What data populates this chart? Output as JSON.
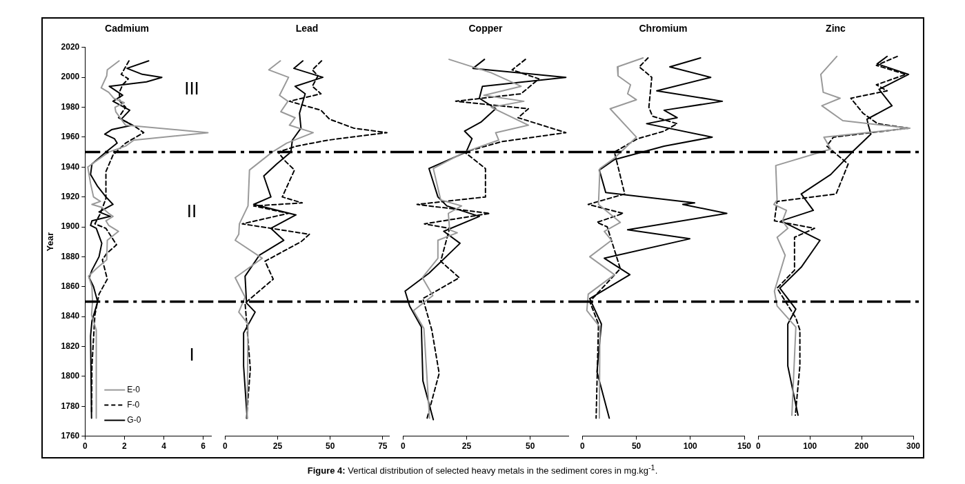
{
  "chart_data": [
    {
      "type": "line",
      "title": "Cadmium",
      "ylabel": "Year",
      "xlim": [
        0,
        6.4
      ],
      "xticks": [
        0,
        2,
        4,
        6
      ],
      "ylim": [
        1760,
        2020
      ],
      "yticks": [
        1760,
        1780,
        1800,
        1820,
        1840,
        1860,
        1880,
        1900,
        1920,
        1940,
        1960,
        1980,
        2000,
        2020
      ],
      "legend": "bottom left",
      "ref_lines": [
        {
          "axis": "y",
          "value": 1950,
          "color": "#000000",
          "line_style": "dashed"
        },
        {
          "axis": "y",
          "value": 1850,
          "color": "#000000",
          "line_style": "dashed"
        }
      ],
      "annotations": [
        "III",
        "II",
        "I",
        "Figure 4: Vertical distribution of selected heavy metals in the sediment cores in mg.kg$^{-1}$."
      ],
      "series": [
        {
          "name": "E-0",
          "color": "#999999",
          "x": [
            1.73,
            1.13,
            1.1,
            0.82,
            1.2,
            1.46,
            1.99,
            1.52,
            1.56,
            2.06,
            6.24,
            2.48,
            2.06,
            1.2,
            0.14,
            0.28,
            0.43,
            0.78,
            0.35,
            0.85,
            1.2,
            1.42,
            1.06,
            1.2,
            1.7,
            1.13,
            1.1,
            0.57,
            0.18,
            0.35,
            0.38,
            0.33,
            0.57,
            0.57
          ],
          "values": [
            2011,
            2005,
            2001,
            1993,
            1990,
            1986,
            1983,
            1980,
            1977,
            1968,
            1963,
            1958,
            1954,
            1950,
            1940,
            1929,
            1920,
            1917,
            1915,
            1913,
            1909,
            1907,
            1904,
            1901,
            1897,
            1891,
            1878,
            1872,
            1867,
            1860,
            1850,
            1841,
            1831,
            1772
          ]
        },
        {
          "name": "F-0",
          "color": "#000000",
          "line_style": "dashed",
          "x": [
            2.23,
            1.84,
            2.2,
            1.91,
            1.74,
            1.77,
            2.06,
            1.7,
            2.55,
            2.98,
            2.06,
            1.42,
            1.06,
            1.06,
            0.78,
            0.5,
            1.06,
            1.6,
            1.09,
            0.88,
            1.13,
            0.71,
            0.5,
            0.35,
            0.33
          ],
          "values": [
            2011,
            2002,
            1999,
            1995,
            1990,
            1984,
            1980,
            1973,
            1967,
            1963,
            1956,
            1948,
            1937,
            1919,
            1909,
            1902,
            1899,
            1888,
            1882,
            1878,
            1865,
            1855,
            1841,
            1807,
            1775
          ]
        },
        {
          "name": "G-0",
          "color": "#000000",
          "x": [
            3.23,
            2.13,
            2.91,
            3.9,
            3.12,
            1.23,
            1.91,
            1.42,
            2.27,
            1.84,
            2.41,
            1.35,
            1.0,
            1.49,
            1.63,
            1.06,
            0.35,
            0.28,
            0.64,
            1.06,
            1.42,
            0.71,
            1.28,
            0.35,
            0.28,
            0.57,
            0.85,
            0.71,
            0.35,
            0.21,
            0.43,
            0.64,
            0.35,
            0.28,
            0.33
          ],
          "values": [
            2011,
            2006,
            2002,
            2000,
            1997,
            1994,
            1988,
            1984,
            1978,
            1972,
            1968,
            1965,
            1962,
            1959,
            1956,
            1950,
            1942,
            1935,
            1927,
            1920,
            1915,
            1910,
            1907,
            1904,
            1901,
            1899,
            1889,
            1880,
            1871,
            1866,
            1860,
            1850,
            1837,
            1827,
            1772
          ]
        }
      ]
    },
    {
      "type": "line",
      "title": "Lead",
      "xlim": [
        0,
        78
      ],
      "xticks": [
        0,
        25,
        50,
        75
      ],
      "ylim": [
        1760,
        2020
      ],
      "tick_labels": "x",
      "ref_lines": [
        {
          "axis": "y",
          "value": 1950,
          "color": "#000000",
          "line_style": "dashed"
        },
        {
          "axis": "y",
          "value": 1850,
          "color": "#000000",
          "line_style": "dashed"
        }
      ],
      "series": [
        {
          "color": "#999999",
          "x": [
            26.3,
            20.8,
            30.2,
            25.9,
            29.9,
            26.5,
            33.3,
            30.6,
            41.9,
            29.3,
            22.4,
            11.6,
            10.9,
            6.8,
            6.5,
            4.8,
            17.7,
            4.8,
            9.5,
            6.5,
            10.9,
            10.5
          ],
          "values": [
            2011,
            2005,
            2000,
            1988,
            1984,
            1977,
            1973,
            1968,
            1963,
            1956,
            1950,
            1938,
            1914,
            1902,
            1895,
            1891,
            1879,
            1866,
            1853,
            1843,
            1835,
            1772
          ]
        },
        {
          "color": "#000000",
          "line_style": "dashed",
          "x": [
            45.9,
            41.5,
            44.2,
            41.5,
            45.6,
            30.6,
            45.6,
            49.7,
            61.2,
            77,
            49,
            34,
            25.2,
            28.6,
            33,
            27.2,
            36.7,
            13.6,
            30,
            8.2,
            40.1,
            36.1,
            19,
            22.9,
            9.5,
            10.2,
            12,
            10.2
          ],
          "values": [
            2011,
            2005,
            2001,
            1994,
            1989,
            1984,
            1978,
            1972,
            1966,
            1963,
            1958,
            1954,
            1950,
            1944,
            1938,
            1920,
            1916,
            1914,
            1909,
            1902,
            1895,
            1890,
            1877,
            1865,
            1849,
            1837,
            1805,
            1772
          ]
        },
        {
          "color": "#000000",
          "x": [
            37,
            32.7,
            46.5,
            33.3,
            38.1,
            35.4,
            36.1,
            32,
            31.3,
            24.5,
            18.4,
            21.8,
            13.6,
            33.7,
            21.8,
            27.9,
            16.3,
            9.5,
            10.2,
            14.3,
            8.8,
            8.8,
            10.5
          ],
          "values": [
            2011,
            2006,
            2000,
            1994,
            1989,
            1976,
            1966,
            1958,
            1950,
            1942,
            1934,
            1920,
            1915,
            1908,
            1899,
            1891,
            1881,
            1867,
            1849,
            1843,
            1829,
            1807,
            1772
          ]
        }
      ]
    },
    {
      "type": "line",
      "title": "Copper",
      "xlim": [
        0,
        65
      ],
      "xticks": [
        0,
        25,
        50
      ],
      "ylim": [
        1760,
        2020
      ],
      "tick_labels": "x",
      "ref_lines": [
        {
          "axis": "y",
          "value": 1950,
          "color": "#000000",
          "line_style": "dashed"
        },
        {
          "axis": "y",
          "value": 1850,
          "color": "#000000",
          "line_style": "dashed"
        }
      ],
      "series": [
        {
          "color": "#999999",
          "x": [
            18.1,
            34.7,
            46.4,
            31.8,
            47.5,
            34.7,
            49.3,
            36.4,
            37.6,
            24.2,
            11.9,
            14.8,
            23,
            17.8,
            18.3,
            21.3,
            13.7,
            13.7,
            7.6,
            11.7,
            4.1,
            8.2,
            10.4
          ],
          "values": [
            2012,
            2003,
            1994,
            1988,
            1984,
            1980,
            1968,
            1963,
            1958,
            1950,
            1939,
            1918,
            1914,
            1909,
            1898,
            1896,
            1891,
            1879,
            1866,
            1854,
            1844,
            1832,
            1772
          ]
        },
        {
          "color": "#000000",
          "line_style": "dashed",
          "x": [
            48.1,
            42.9,
            53.4,
            46.4,
            20.7,
            49.3,
            45.2,
            64,
            38.8,
            24.2,
            32.4,
            32.4,
            5.5,
            34.1,
            8.4,
            18.3,
            14.8,
            22.1,
            7.8,
            11.3,
            14.2,
            9.3
          ],
          "values": [
            2012,
            2005,
            1999,
            1989,
            1984,
            1979,
            1973,
            1963,
            1957,
            1950,
            1939,
            1920,
            1915,
            1909,
            1902,
            1899,
            1877,
            1866,
            1852,
            1831,
            1802,
            1771
          ]
        },
        {
          "color": "#000000",
          "x": [
            32,
            27.5,
            64,
            31.2,
            30,
            36.4,
            30.6,
            24.2,
            27.1,
            24.8,
            10.2,
            13.7,
            17.2,
            30,
            16,
            22.4,
            10.2,
            0.8,
            2.6,
            7.2,
            7.8,
            11.9
          ],
          "values": [
            2012,
            2006,
            2000,
            1994,
            1986,
            1979,
            1970,
            1964,
            1959,
            1950,
            1939,
            1920,
            1914,
            1907,
            1897,
            1889,
            1869,
            1857,
            1847,
            1833,
            1797,
            1771
          ]
        }
      ]
    },
    {
      "type": "line",
      "title": "Chromium",
      "xlim": [
        0,
        150
      ],
      "xticks": [
        0,
        50,
        100,
        150
      ],
      "ylim": [
        1760,
        2020
      ],
      "tick_labels": "x",
      "ref_lines": [
        {
          "axis": "y",
          "value": 1950,
          "color": "#000000",
          "line_style": "dashed"
        },
        {
          "axis": "y",
          "value": 1850,
          "color": "#000000",
          "line_style": "dashed"
        }
      ],
      "series": [
        {
          "color": "#999999",
          "x": [
            56.2,
            32.4,
            33,
            44.6,
            41.9,
            50,
            25.7,
            50,
            29.7,
            16.2,
            14.9,
            35.1,
            20.3,
            27,
            6.8,
            29.7,
            5.4,
            4.1,
            16.2,
            15.7
          ],
          "values": [
            2013,
            2007,
            2001,
            1995,
            1989,
            1985,
            1979,
            1960,
            1946,
            1939,
            1915,
            1903,
            1897,
            1891,
            1880,
            1868,
            1855,
            1844,
            1833,
            1772
          ]
        },
        {
          "color": "#000000",
          "line_style": "dashed",
          "x": [
            60.8,
            52.7,
            64.3,
            61.6,
            64.9,
            87.8,
            75.7,
            51.4,
            29.7,
            39.2,
            5.4,
            37.8,
            13.5,
            23,
            35.1,
            6.8,
            14.9,
            12.7
          ],
          "values": [
            2013,
            2007,
            2000,
            1980,
            1974,
            1969,
            1964,
            1959,
            1950,
            1922,
            1915,
            1909,
            1903,
            1900,
            1872,
            1850,
            1835,
            1772
          ]
        },
        {
          "color": "#000000",
          "x": [
            109.5,
            81,
            118.9,
            68.9,
            129.7,
            75.7,
            87.8,
            59.5,
            120.3,
            75.7,
            29.7,
            15.7,
            21.6,
            104,
            93,
            133.8,
            41.9,
            99.5,
            20.3,
            44,
            6.8,
            17.6,
            13.5,
            24.9
          ],
          "values": [
            2013,
            2007,
            2000,
            1991,
            1984,
            1978,
            1973,
            1969,
            1960,
            1954,
            1945,
            1938,
            1923,
            1916,
            1915,
            1909,
            1898,
            1892,
            1879,
            1868,
            1852,
            1835,
            1803,
            1772
          ]
        }
      ]
    },
    {
      "type": "line",
      "title": "Zinc",
      "xlim": [
        0,
        300
      ],
      "xticks": [
        0,
        100,
        200,
        300
      ],
      "ylim": [
        1760,
        2020
      ],
      "tick_labels": "x",
      "ref_lines": [
        {
          "axis": "y",
          "value": 1950,
          "color": "#000000",
          "line_style": "dashed"
        },
        {
          "axis": "y",
          "value": 1850,
          "color": "#000000",
          "line_style": "dashed"
        }
      ],
      "series": [
        {
          "color": "#999999",
          "x": [
            152,
            121,
            125.7,
            158.4,
            123,
            163.6,
            293.5,
            127,
            140.2,
            33.8,
            36.4,
            30.1,
            54.5,
            46.8,
            57.1,
            36.4,
            52,
            31.2,
            36.4,
            72.7,
            65
          ],
          "values": [
            2014,
            2002,
            1990,
            1986,
            1981,
            1971,
            1966,
            1960,
            1952,
            1941,
            1918,
            1915,
            1911,
            1904,
            1899,
            1893,
            1881,
            1857,
            1847,
            1833,
            1774
          ]
        },
        {
          "color": "#000000",
          "line_style": "dashed",
          "x": [
            269,
            228.6,
            285.7,
            228.6,
            249.4,
            179.2,
            202.6,
            231,
            290.9,
            145.5,
            132.5,
            174,
            150.6,
            36.4,
            31.2,
            109,
            70.1,
            70.1,
            36.4,
            72.7,
            80.5,
            80.5,
            71.7
          ],
          "values": [
            2014,
            2008,
            2002,
            1995,
            1991,
            1986,
            1976,
            1969,
            1966,
            1960,
            1954,
            1942,
            1922,
            1917,
            1904,
            1899,
            1893,
            1871,
            1859,
            1839,
            1831,
            1807,
            1774
          ]
        },
        {
          "color": "#000000",
          "x": [
            249.4,
            230.1,
            290.9,
            233.8,
            258.8,
            210.4,
            213,
            218,
            181.8,
            140.2,
            83.1,
            106.5,
            44.2,
            119.5,
            83.1,
            41.6,
            72.7,
            57.1,
            57.1,
            76.9
          ],
          "values": [
            2014,
            2009,
            2002,
            1992,
            1981,
            1972,
            1968,
            1962,
            1950,
            1935,
            1922,
            1911,
            1904,
            1891,
            1873,
            1859,
            1845,
            1835,
            1807,
            1774
          ]
        }
      ]
    }
  ]
}
